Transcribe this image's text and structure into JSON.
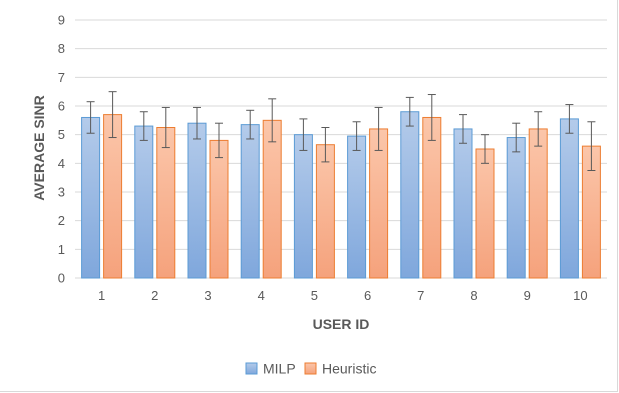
{
  "colors": {
    "milp_fill_top": "#b4cbea",
    "milp_fill_bottom": "#7fa7dc",
    "milp_stroke": "#5b9bd5",
    "heuristic_fill_top": "#fbc6aa",
    "heuristic_fill_bottom": "#f5a27c",
    "heuristic_stroke": "#ed7d31",
    "grid": "#d9d9d9",
    "error_bar": "#595959"
  },
  "chart_data": {
    "type": "bar",
    "xlabel": "USER ID",
    "ylabel": "AVERAGE SINR",
    "categories": [
      "1",
      "2",
      "3",
      "4",
      "5",
      "6",
      "7",
      "8",
      "9",
      "10"
    ],
    "ylim": [
      0,
      9
    ],
    "yticks": [
      "0",
      "1",
      "2",
      "3",
      "4",
      "5",
      "6",
      "7",
      "8",
      "9"
    ],
    "grid": true,
    "legend_position": "bottom",
    "series": [
      {
        "name": "MILP",
        "values": [
          5.6,
          5.3,
          5.4,
          5.35,
          5.0,
          4.95,
          5.8,
          5.2,
          4.9,
          5.55
        ],
        "error_low": [
          0.55,
          0.5,
          0.55,
          0.5,
          0.55,
          0.5,
          0.5,
          0.5,
          0.5,
          0.5
        ],
        "error_high": [
          0.55,
          0.5,
          0.55,
          0.5,
          0.55,
          0.5,
          0.5,
          0.5,
          0.5,
          0.5
        ]
      },
      {
        "name": "Heuristic",
        "values": [
          5.7,
          5.25,
          4.8,
          5.5,
          4.65,
          5.2,
          5.6,
          4.5,
          5.2,
          4.6
        ],
        "error_low": [
          0.8,
          0.7,
          0.6,
          0.75,
          0.6,
          0.75,
          0.8,
          0.5,
          0.6,
          0.85
        ],
        "error_high": [
          0.8,
          0.7,
          0.6,
          0.75,
          0.6,
          0.75,
          0.8,
          0.5,
          0.6,
          0.85
        ]
      }
    ]
  }
}
